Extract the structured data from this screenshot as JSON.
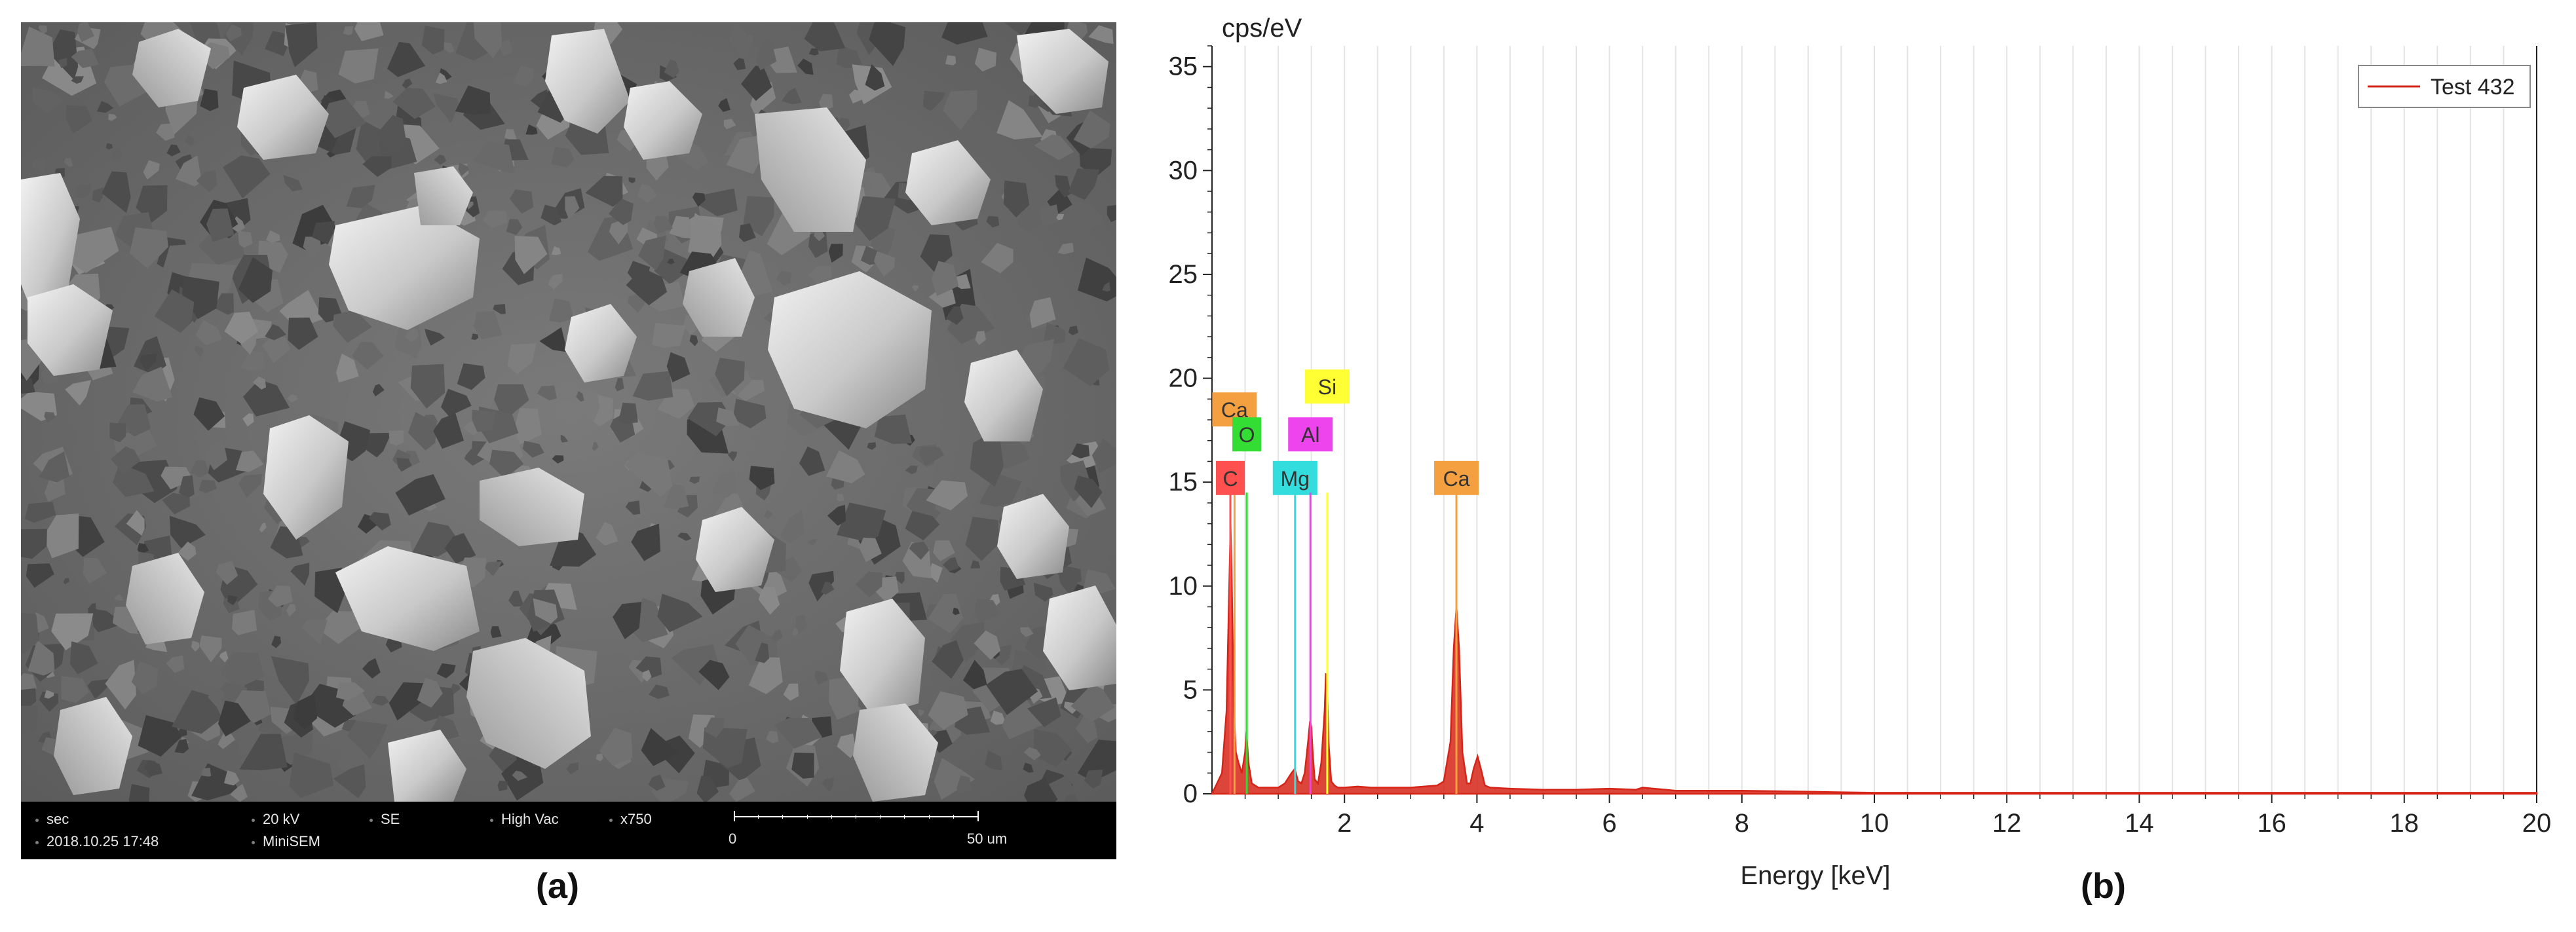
{
  "panel_labels": {
    "a": "(a)",
    "b": "(b)"
  },
  "sem_info": {
    "mode": "sec",
    "voltage": "20 kV",
    "detector": "SE",
    "vacuum": "High Vac",
    "magnification": "x750",
    "datetime": "2018.10.25 17:48",
    "instrument": "MiniSEM",
    "scale_start": "0",
    "scale_end": "50 um"
  },
  "chart_data": {
    "type": "line",
    "xlabel": "Energy [keV]",
    "ylabel": "cps/eV",
    "xlim": [
      0,
      20
    ],
    "ylim": [
      0,
      36
    ],
    "x_ticks": [
      "2",
      "4",
      "6",
      "8",
      "10",
      "12",
      "14",
      "16",
      "18",
      "20"
    ],
    "y_ticks": [
      "0",
      "5",
      "10",
      "15",
      "20",
      "25",
      "30",
      "35"
    ],
    "grid": true,
    "legend_position": "top-right",
    "series": [
      {
        "name": "Test 432",
        "color": "#d62418",
        "x": [
          0.0,
          0.15,
          0.22,
          0.26,
          0.28,
          0.3,
          0.33,
          0.36,
          0.4,
          0.45,
          0.5,
          0.52,
          0.55,
          0.6,
          0.7,
          0.8,
          0.9,
          1.0,
          1.1,
          1.2,
          1.25,
          1.3,
          1.35,
          1.4,
          1.45,
          1.48,
          1.5,
          1.52,
          1.55,
          1.6,
          1.65,
          1.7,
          1.72,
          1.74,
          1.76,
          1.8,
          1.85,
          1.9,
          2.0,
          2.2,
          2.4,
          2.6,
          2.8,
          3.0,
          3.2,
          3.4,
          3.5,
          3.6,
          3.65,
          3.69,
          3.73,
          3.78,
          3.85,
          3.9,
          3.95,
          4.01,
          4.06,
          4.12,
          4.2,
          4.5,
          5.0,
          5.5,
          6.0,
          6.4,
          6.5,
          7.0,
          8.0,
          9.0,
          10.0,
          12.0,
          14.0,
          16.0,
          18.0,
          20.0
        ],
        "y": [
          0.0,
          1.0,
          4.0,
          10.0,
          13.0,
          10.0,
          4.0,
          2.0,
          1.5,
          1.0,
          2.0,
          3.0,
          1.5,
          0.5,
          0.3,
          0.3,
          0.3,
          0.3,
          0.5,
          1.0,
          1.2,
          0.6,
          0.5,
          1.0,
          2.5,
          3.5,
          3.2,
          2.0,
          0.7,
          0.5,
          1.5,
          4.0,
          5.8,
          5.0,
          2.5,
          0.6,
          0.4,
          0.3,
          0.3,
          0.35,
          0.3,
          0.3,
          0.3,
          0.3,
          0.35,
          0.4,
          0.6,
          2.5,
          7.0,
          9.0,
          7.0,
          2.0,
          0.5,
          0.5,
          1.2,
          1.8,
          1.2,
          0.4,
          0.3,
          0.25,
          0.2,
          0.2,
          0.25,
          0.2,
          0.3,
          0.15,
          0.15,
          0.1,
          0.05,
          0.05,
          0.05,
          0.05,
          0.05,
          0.05
        ]
      }
    ],
    "annotations": [
      {
        "label": "Ca",
        "x": 0.34,
        "y_line": 14.5,
        "label_y": 18.5,
        "color": "#f4a040"
      },
      {
        "label": "C",
        "x": 0.277,
        "y_line": 14.5,
        "label_y": 15.2,
        "color": "#ff5050"
      },
      {
        "label": "O",
        "x": 0.525,
        "y_line": 14.5,
        "label_y": 17.3,
        "color": "#33dd33"
      },
      {
        "label": "Mg",
        "x": 1.254,
        "y_line": 14.5,
        "label_y": 15.2,
        "color": "#33dddd"
      },
      {
        "label": "Al",
        "x": 1.486,
        "y_line": 14.5,
        "label_y": 17.3,
        "color": "#ee44ee"
      },
      {
        "label": "Si",
        "x": 1.74,
        "y_line": 14.5,
        "label_y": 19.6,
        "color": "#ffff33"
      },
      {
        "label": "Ca",
        "x": 3.69,
        "y_line": 14.5,
        "label_y": 15.2,
        "color": "#f4a040"
      }
    ]
  }
}
